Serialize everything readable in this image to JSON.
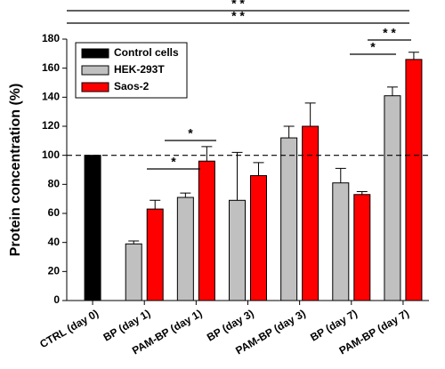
{
  "chart_data": {
    "type": "bar",
    "ylabel": "Protein concentration (%)",
    "categories": [
      "CTRL (day 0)",
      "BP (day 1)",
      "PAM-BP (day 1)",
      "BP (day 3)",
      "PAM-BP (day 3)",
      "BP (day 7)",
      "PAM-BP (day 7)"
    ],
    "series": [
      {
        "name": "Control cells",
        "color": "#000000",
        "values": [
          100,
          null,
          null,
          null,
          null,
          null,
          null
        ],
        "errors": [
          null,
          null,
          null,
          null,
          null,
          null,
          null
        ]
      },
      {
        "name": "HEK-293T",
        "color": "#c0c0c0",
        "values": [
          null,
          39,
          71,
          69,
          112,
          81,
          141
        ],
        "errors": [
          null,
          2,
          3,
          33,
          8,
          10,
          6
        ]
      },
      {
        "name": "Saos-2",
        "color": "#ff0000",
        "values": [
          null,
          63,
          96,
          86,
          120,
          73,
          166
        ],
        "errors": [
          null,
          6,
          10,
          9,
          16,
          2,
          5
        ]
      }
    ],
    "ylim": [
      0,
      180
    ],
    "yticks": [
      0,
      20,
      40,
      60,
      80,
      100,
      120,
      140,
      160,
      180
    ],
    "reference_line": 100,
    "annotations": [
      "* *",
      "* *",
      "* *",
      "*",
      "*",
      "*"
    ],
    "legend": "upper left"
  }
}
